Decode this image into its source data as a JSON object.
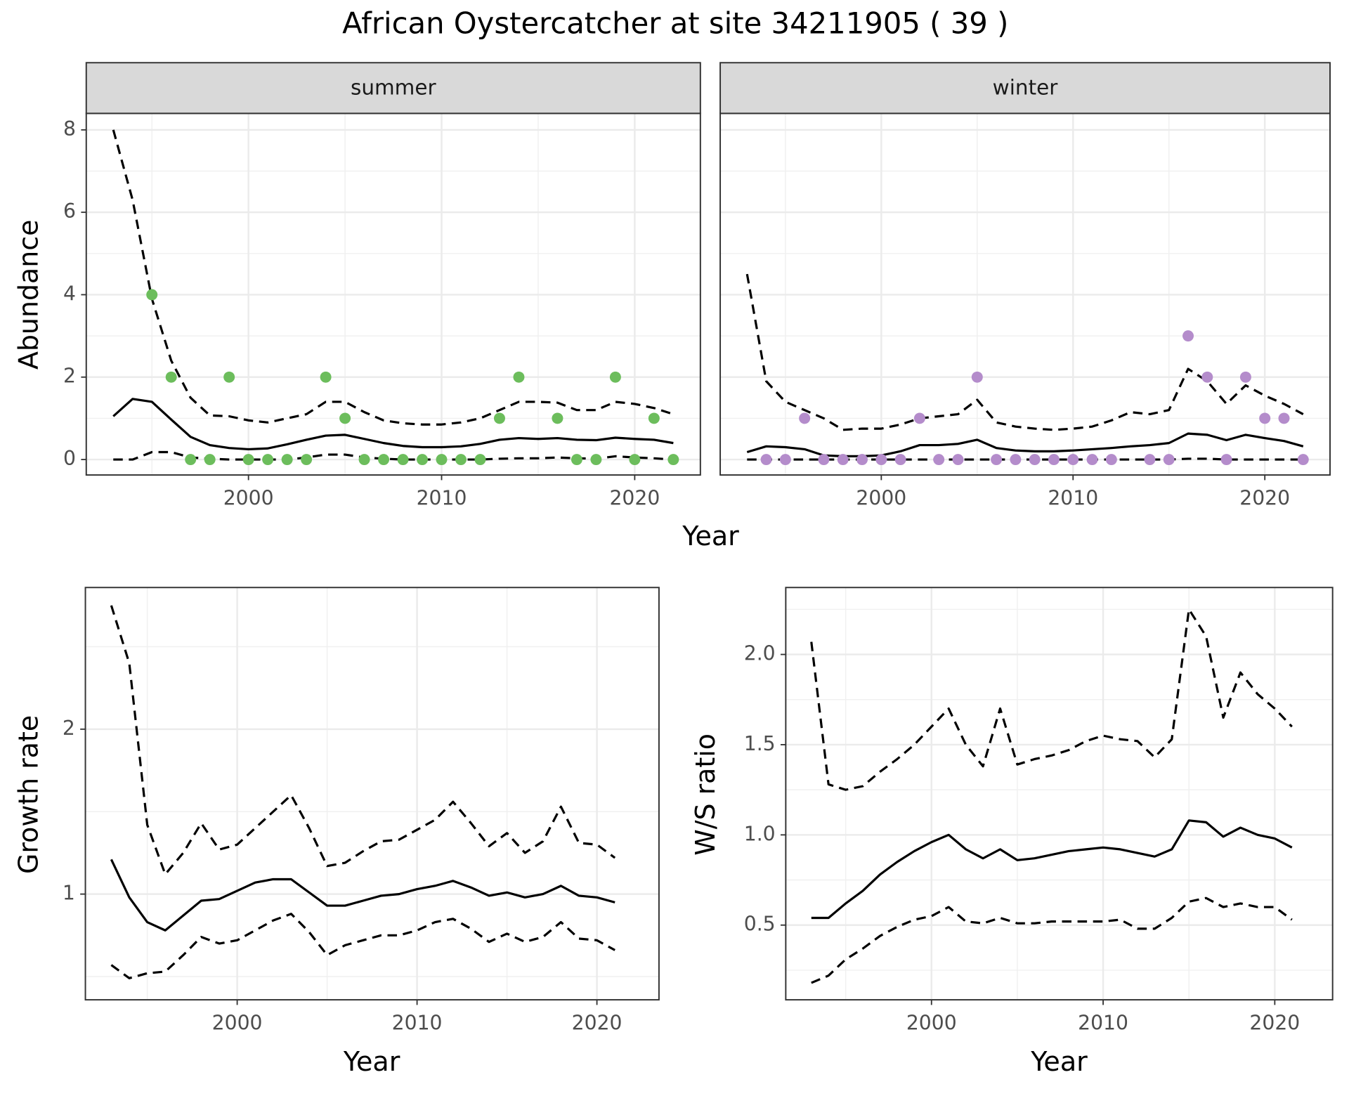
{
  "title": "African Oystercatcher at site 34211905 ( 39 )",
  "chart_data": [
    {
      "type": "line",
      "facet": "summer",
      "ylabel": "Abundance",
      "xlabel": "Year",
      "x": [
        1993,
        1994,
        1995,
        1996,
        1997,
        1998,
        1999,
        2000,
        2001,
        2002,
        2003,
        2004,
        2005,
        2006,
        2007,
        2008,
        2009,
        2010,
        2011,
        2012,
        2013,
        2014,
        2015,
        2016,
        2017,
        2018,
        2019,
        2020,
        2021,
        2022
      ],
      "xlim": [
        1991.6,
        2023.4
      ],
      "xticks": [
        2000,
        2010,
        2020
      ],
      "ylim": [
        -0.375,
        8.4
      ],
      "yticks": [
        0,
        2,
        4,
        6,
        8
      ],
      "grid": true,
      "series": [
        {
          "color": "#000000",
          "style": "dashed",
          "values": [
            8.0,
            6.3,
            3.9,
            2.4,
            1.5,
            1.07,
            1.05,
            0.95,
            0.9,
            1.0,
            1.1,
            1.4,
            1.4,
            1.15,
            0.95,
            0.88,
            0.85,
            0.85,
            0.9,
            1.0,
            1.2,
            1.4,
            1.4,
            1.38,
            1.2,
            1.2,
            1.4,
            1.35,
            1.25,
            1.1
          ]
        },
        {
          "color": "#000000",
          "style": "solid",
          "values": [
            1.05,
            1.47,
            1.4,
            0.97,
            0.55,
            0.35,
            0.28,
            0.25,
            0.27,
            0.37,
            0.48,
            0.58,
            0.6,
            0.5,
            0.4,
            0.33,
            0.3,
            0.3,
            0.32,
            0.38,
            0.48,
            0.52,
            0.5,
            0.52,
            0.48,
            0.47,
            0.53,
            0.5,
            0.48,
            0.4
          ]
        },
        {
          "color": "#000000",
          "style": "dashed",
          "values": [
            0,
            0,
            0.18,
            0.18,
            0.05,
            0.02,
            0,
            0,
            0,
            0,
            0.05,
            0.12,
            0.12,
            0.05,
            0.02,
            0,
            0,
            0,
            0,
            0,
            0.02,
            0.03,
            0.03,
            0.05,
            0.03,
            0.02,
            0.08,
            0.05,
            0.03,
            0
          ]
        },
        {
          "color": "#6cbd5c",
          "style": "points",
          "x": [
            1995,
            1996,
            1997,
            1998,
            1999,
            2000,
            2001,
            2002,
            2003,
            2004,
            2005,
            2006,
            2007,
            2008,
            2009,
            2010,
            2011,
            2012,
            2013,
            2014,
            2016,
            2017,
            2018,
            2019,
            2020,
            2021,
            2022
          ],
          "values": [
            4,
            2,
            0,
            0,
            2,
            0,
            0,
            0,
            0,
            2,
            1,
            0,
            0,
            0,
            0,
            0,
            0,
            0,
            1,
            2,
            1,
            0,
            0,
            2,
            0,
            1,
            0
          ]
        }
      ]
    },
    {
      "type": "line",
      "facet": "winter",
      "x": [
        1993,
        1994,
        1995,
        1996,
        1997,
        1998,
        1999,
        2000,
        2001,
        2002,
        2003,
        2004,
        2005,
        2006,
        2007,
        2008,
        2009,
        2010,
        2011,
        2012,
        2013,
        2014,
        2015,
        2016,
        2017,
        2018,
        2019,
        2020,
        2021,
        2022
      ],
      "xlim": [
        1991.6,
        2023.4
      ],
      "xticks": [
        2000,
        2010,
        2020
      ],
      "ylim": [
        -0.375,
        8.4
      ],
      "yticks": [
        0,
        2,
        4,
        6,
        8
      ],
      "grid": true,
      "series": [
        {
          "color": "#000000",
          "style": "dashed",
          "values": [
            4.5,
            1.9,
            1.4,
            1.2,
            1.0,
            0.72,
            0.75,
            0.75,
            0.85,
            1.0,
            1.05,
            1.1,
            1.45,
            0.9,
            0.8,
            0.75,
            0.72,
            0.75,
            0.8,
            0.95,
            1.15,
            1.1,
            1.2,
            2.2,
            1.9,
            1.35,
            1.8,
            1.55,
            1.35,
            1.1
          ]
        },
        {
          "color": "#000000",
          "style": "solid",
          "values": [
            0.18,
            0.32,
            0.3,
            0.25,
            0.1,
            0.08,
            0.08,
            0.1,
            0.2,
            0.35,
            0.35,
            0.38,
            0.48,
            0.28,
            0.22,
            0.2,
            0.2,
            0.22,
            0.25,
            0.28,
            0.32,
            0.35,
            0.4,
            0.63,
            0.6,
            0.47,
            0.6,
            0.52,
            0.45,
            0.32
          ]
        },
        {
          "color": "#000000",
          "style": "dashed",
          "values": [
            0,
            0,
            0,
            0,
            0,
            0,
            0,
            0,
            0,
            0,
            0,
            0,
            0,
            0,
            0,
            0,
            0,
            0,
            0,
            0,
            0,
            0,
            0,
            0.02,
            0.02,
            0,
            0,
            0,
            0,
            0
          ]
        },
        {
          "color": "#b48ccb",
          "style": "points",
          "x": [
            1994,
            1995,
            1996,
            1997,
            1998,
            1999,
            2000,
            2001,
            2002,
            2003,
            2004,
            2005,
            2006,
            2007,
            2008,
            2009,
            2010,
            2011,
            2012,
            2014,
            2015,
            2016,
            2017,
            2018,
            2019,
            2020,
            2021,
            2022
          ],
          "values": [
            0,
            0,
            1,
            0,
            0,
            0,
            0,
            0,
            1,
            0,
            0,
            2,
            0,
            0,
            0,
            0,
            0,
            0,
            0,
            0,
            0,
            3,
            2,
            0,
            2,
            1,
            1,
            0
          ]
        }
      ]
    },
    {
      "type": "line",
      "ylabel": "Growth rate",
      "xlabel": "Year",
      "x": [
        1993,
        1994,
        1995,
        1996,
        1997,
        1998,
        1999,
        2000,
        2001,
        2002,
        2003,
        2004,
        2005,
        2006,
        2007,
        2008,
        2009,
        2010,
        2011,
        2012,
        2013,
        2014,
        2015,
        2016,
        2017,
        2018,
        2019,
        2020,
        2021
      ],
      "xlim": [
        1991.56,
        2023.45
      ],
      "xticks": [
        2000,
        2010,
        2020
      ],
      "ylim": [
        0.359,
        2.859
      ],
      "yticks": [
        1,
        2
      ],
      "grid": true,
      "series": [
        {
          "color": "#000000",
          "style": "dashed",
          "values": [
            2.75,
            2.4,
            1.42,
            1.12,
            1.25,
            1.43,
            1.27,
            1.3,
            1.4,
            1.5,
            1.6,
            1.4,
            1.17,
            1.19,
            1.26,
            1.32,
            1.33,
            1.39,
            1.45,
            1.56,
            1.43,
            1.29,
            1.37,
            1.25,
            1.32,
            1.53,
            1.31,
            1.3,
            1.22
          ]
        },
        {
          "color": "#000000",
          "style": "solid",
          "values": [
            1.21,
            0.98,
            0.83,
            0.78,
            0.87,
            0.96,
            0.97,
            1.02,
            1.07,
            1.09,
            1.09,
            1.01,
            0.93,
            0.93,
            0.96,
            0.99,
            1.0,
            1.03,
            1.05,
            1.08,
            1.04,
            0.99,
            1.01,
            0.98,
            1.0,
            1.05,
            0.99,
            0.98,
            0.95
          ]
        },
        {
          "color": "#000000",
          "style": "dashed",
          "values": [
            0.57,
            0.49,
            0.52,
            0.53,
            0.63,
            0.74,
            0.7,
            0.72,
            0.78,
            0.84,
            0.88,
            0.77,
            0.63,
            0.69,
            0.72,
            0.75,
            0.75,
            0.78,
            0.83,
            0.85,
            0.79,
            0.71,
            0.76,
            0.71,
            0.74,
            0.83,
            0.73,
            0.72,
            0.66
          ]
        }
      ]
    },
    {
      "type": "line",
      "ylabel": "W/S ratio",
      "xlabel": "Year",
      "x": [
        1993,
        1994,
        1995,
        1996,
        1997,
        1998,
        1999,
        2000,
        2001,
        2002,
        2003,
        2004,
        2005,
        2006,
        2007,
        2008,
        2009,
        2010,
        2011,
        2012,
        2013,
        2014,
        2015,
        2016,
        2017,
        2018,
        2019,
        2020,
        2021
      ],
      "xlim": [
        1991.51,
        2023.37
      ],
      "xticks": [
        2000,
        2010,
        2020
      ],
      "ylim": [
        0.086,
        2.371
      ],
      "yticks": [
        0.5,
        {
          "value": 1,
          "label": "1.0"
        },
        1.5,
        {
          "value": 2,
          "label": "2.0"
        }
      ],
      "grid": true,
      "series": [
        {
          "color": "#000000",
          "style": "dashed",
          "values": [
            2.07,
            1.28,
            1.25,
            1.27,
            1.35,
            1.42,
            1.5,
            1.6,
            1.7,
            1.5,
            1.38,
            1.7,
            1.39,
            1.42,
            1.44,
            1.47,
            1.52,
            1.55,
            1.53,
            1.52,
            1.43,
            1.53,
            2.25,
            2.1,
            1.65,
            1.9,
            1.78,
            1.7,
            1.6
          ]
        },
        {
          "color": "#000000",
          "style": "solid",
          "values": [
            0.54,
            0.54,
            0.62,
            0.69,
            0.78,
            0.85,
            0.91,
            0.96,
            1.0,
            0.92,
            0.87,
            0.92,
            0.86,
            0.87,
            0.89,
            0.91,
            0.92,
            0.93,
            0.92,
            0.9,
            0.88,
            0.92,
            1.08,
            1.07,
            0.99,
            1.04,
            1.0,
            0.98,
            0.93
          ]
        },
        {
          "color": "#000000",
          "style": "dashed",
          "values": [
            0.18,
            0.22,
            0.31,
            0.37,
            0.44,
            0.49,
            0.53,
            0.55,
            0.6,
            0.52,
            0.51,
            0.54,
            0.51,
            0.51,
            0.52,
            0.52,
            0.52,
            0.52,
            0.53,
            0.48,
            0.48,
            0.54,
            0.63,
            0.65,
            0.6,
            0.62,
            0.6,
            0.6,
            0.53
          ]
        }
      ]
    }
  ]
}
